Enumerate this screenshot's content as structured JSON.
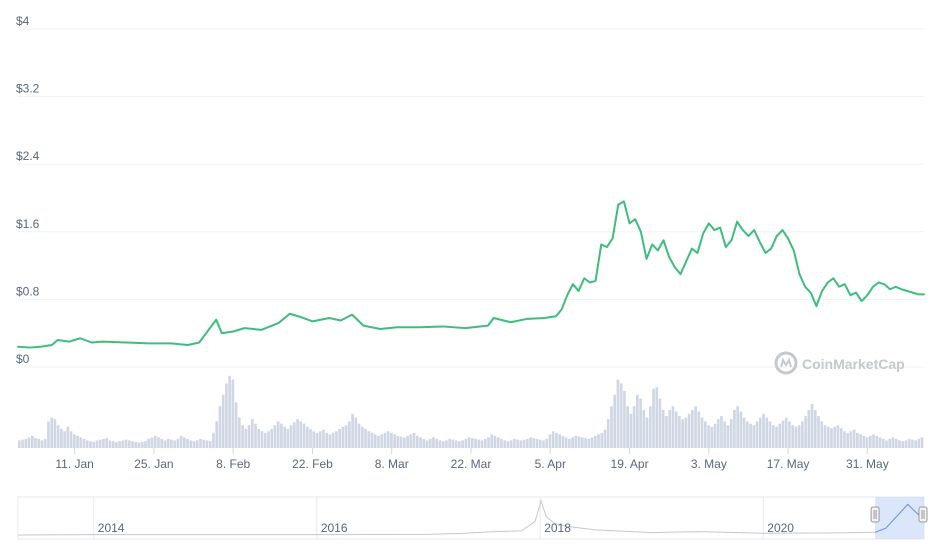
{
  "watermark": "CoinMarketCap",
  "colors": {
    "price_line": "#3ebd7c",
    "volume_bar": "#cfd6e4",
    "grid": "#eff2f5",
    "tick_text": "#58667e",
    "navigator_line": "#c4c8cf",
    "navigator_selection": "#c9d8f8",
    "navigator_border": "#e6e9ee",
    "watermark": "#c4c8cf"
  },
  "chart_data": [
    {
      "type": "line",
      "title": "",
      "xlabel": "",
      "ylabel": "",
      "y_axis": {
        "ticks": [
          "$0",
          "$0.8",
          "$1.6",
          "$2.4",
          "$3.2",
          "$4"
        ],
        "range": [
          0,
          4
        ],
        "grid": true
      },
      "x_axis": {
        "ticks": [
          "11. Jan",
          "25. Jan",
          "8. Feb",
          "22. Feb",
          "8. Mar",
          "22. Mar",
          "5. Apr",
          "19. Apr",
          "3. May",
          "17. May",
          "31. May"
        ],
        "range": [
          "2021-01-01",
          "2021-06-10"
        ]
      },
      "series": [
        {
          "values": [
            [
              "2021-01-01",
              0.24
            ],
            [
              "2021-01-03",
              0.23
            ],
            [
              "2021-01-05",
              0.24
            ],
            [
              "2021-01-07",
              0.26
            ],
            [
              "2021-01-08",
              0.32
            ],
            [
              "2021-01-10",
              0.3
            ],
            [
              "2021-01-12",
              0.34
            ],
            [
              "2021-01-14",
              0.29
            ],
            [
              "2021-01-16",
              0.3
            ],
            [
              "2021-01-20",
              0.29
            ],
            [
              "2021-01-24",
              0.28
            ],
            [
              "2021-01-28",
              0.28
            ],
            [
              "2021-01-31",
              0.26
            ],
            [
              "2021-02-02",
              0.29
            ],
            [
              "2021-02-03",
              0.38
            ],
            [
              "2021-02-04",
              0.47
            ],
            [
              "2021-02-05",
              0.56
            ],
            [
              "2021-02-06",
              0.4
            ],
            [
              "2021-02-08",
              0.42
            ],
            [
              "2021-02-10",
              0.46
            ],
            [
              "2021-02-13",
              0.44
            ],
            [
              "2021-02-16",
              0.52
            ],
            [
              "2021-02-18",
              0.63
            ],
            [
              "2021-02-20",
              0.59
            ],
            [
              "2021-02-22",
              0.54
            ],
            [
              "2021-02-25",
              0.58
            ],
            [
              "2021-02-27",
              0.55
            ],
            [
              "2021-03-01",
              0.62
            ],
            [
              "2021-03-03",
              0.49
            ],
            [
              "2021-03-06",
              0.45
            ],
            [
              "2021-03-09",
              0.47
            ],
            [
              "2021-03-13",
              0.47
            ],
            [
              "2021-03-17",
              0.48
            ],
            [
              "2021-03-21",
              0.46
            ],
            [
              "2021-03-25",
              0.49
            ],
            [
              "2021-03-26",
              0.58
            ],
            [
              "2021-03-29",
              0.53
            ],
            [
              "2021-04-01",
              0.57
            ],
            [
              "2021-04-04",
              0.58
            ],
            [
              "2021-04-06",
              0.6
            ],
            [
              "2021-04-07",
              0.68
            ],
            [
              "2021-04-08",
              0.85
            ],
            [
              "2021-04-09",
              0.98
            ],
            [
              "2021-04-10",
              0.9
            ],
            [
              "2021-04-11",
              1.05
            ],
            [
              "2021-04-12",
              1.0
            ],
            [
              "2021-04-13",
              1.02
            ],
            [
              "2021-04-14",
              1.45
            ],
            [
              "2021-04-15",
              1.42
            ],
            [
              "2021-04-16",
              1.52
            ],
            [
              "2021-04-17",
              1.92
            ],
            [
              "2021-04-18",
              1.96
            ],
            [
              "2021-04-19",
              1.7
            ],
            [
              "2021-04-20",
              1.75
            ],
            [
              "2021-04-21",
              1.6
            ],
            [
              "2021-04-22",
              1.28
            ],
            [
              "2021-04-23",
              1.45
            ],
            [
              "2021-04-24",
              1.38
            ],
            [
              "2021-04-25",
              1.5
            ],
            [
              "2021-04-26",
              1.3
            ],
            [
              "2021-04-27",
              1.18
            ],
            [
              "2021-04-28",
              1.1
            ],
            [
              "2021-04-29",
              1.25
            ],
            [
              "2021-04-30",
              1.4
            ],
            [
              "2021-05-01",
              1.35
            ],
            [
              "2021-05-02",
              1.58
            ],
            [
              "2021-05-03",
              1.7
            ],
            [
              "2021-05-04",
              1.62
            ],
            [
              "2021-05-05",
              1.65
            ],
            [
              "2021-05-06",
              1.42
            ],
            [
              "2021-05-07",
              1.5
            ],
            [
              "2021-05-08",
              1.72
            ],
            [
              "2021-05-09",
              1.62
            ],
            [
              "2021-05-10",
              1.55
            ],
            [
              "2021-05-11",
              1.62
            ],
            [
              "2021-05-12",
              1.48
            ],
            [
              "2021-05-13",
              1.35
            ],
            [
              "2021-05-14",
              1.4
            ],
            [
              "2021-05-15",
              1.55
            ],
            [
              "2021-05-16",
              1.62
            ],
            [
              "2021-05-17",
              1.52
            ],
            [
              "2021-05-18",
              1.38
            ],
            [
              "2021-05-19",
              1.1
            ],
            [
              "2021-05-20",
              0.95
            ],
            [
              "2021-05-21",
              0.88
            ],
            [
              "2021-05-22",
              0.72
            ],
            [
              "2021-05-23",
              0.9
            ],
            [
              "2021-05-24",
              1.0
            ],
            [
              "2021-05-25",
              1.05
            ],
            [
              "2021-05-26",
              0.95
            ],
            [
              "2021-05-27",
              0.98
            ],
            [
              "2021-05-28",
              0.85
            ],
            [
              "2021-05-29",
              0.88
            ],
            [
              "2021-05-30",
              0.78
            ],
            [
              "2021-05-31",
              0.85
            ],
            [
              "2021-06-01",
              0.95
            ],
            [
              "2021-06-02",
              1.0
            ],
            [
              "2021-06-03",
              0.98
            ],
            [
              "2021-06-04",
              0.92
            ],
            [
              "2021-06-05",
              0.95
            ],
            [
              "2021-06-06",
              0.92
            ],
            [
              "2021-06-07",
              0.9
            ],
            [
              "2021-06-08",
              0.88
            ],
            [
              "2021-06-09",
              0.86
            ],
            [
              "2021-06-10",
              0.86
            ]
          ]
        }
      ]
    },
    {
      "type": "bar",
      "title": "",
      "x_range": [
        "2021-01-01",
        "2021-06-10"
      ],
      "volume_relative_to_max": [
        0.1,
        0.11,
        0.12,
        0.14,
        0.16,
        0.13,
        0.12,
        0.1,
        0.12,
        0.35,
        0.4,
        0.38,
        0.3,
        0.25,
        0.22,
        0.28,
        0.22,
        0.18,
        0.16,
        0.14,
        0.12,
        0.1,
        0.09,
        0.08,
        0.1,
        0.11,
        0.12,
        0.13,
        0.1,
        0.09,
        0.08,
        0.09,
        0.1,
        0.11,
        0.1,
        0.09,
        0.08,
        0.07,
        0.08,
        0.09,
        0.12,
        0.14,
        0.16,
        0.14,
        0.12,
        0.1,
        0.12,
        0.11,
        0.1,
        0.12,
        0.16,
        0.14,
        0.12,
        0.1,
        0.09,
        0.1,
        0.12,
        0.11,
        0.1,
        0.09,
        0.2,
        0.35,
        0.55,
        0.7,
        0.85,
        0.95,
        0.9,
        0.6,
        0.4,
        0.3,
        0.25,
        0.3,
        0.38,
        0.32,
        0.25,
        0.22,
        0.2,
        0.22,
        0.25,
        0.3,
        0.35,
        0.32,
        0.28,
        0.25,
        0.3,
        0.34,
        0.38,
        0.35,
        0.32,
        0.28,
        0.25,
        0.22,
        0.2,
        0.22,
        0.24,
        0.2,
        0.18,
        0.2,
        0.22,
        0.25,
        0.28,
        0.3,
        0.35,
        0.45,
        0.4,
        0.32,
        0.28,
        0.25,
        0.22,
        0.2,
        0.18,
        0.16,
        0.18,
        0.2,
        0.22,
        0.2,
        0.18,
        0.16,
        0.15,
        0.14,
        0.16,
        0.18,
        0.2,
        0.16,
        0.14,
        0.12,
        0.1,
        0.12,
        0.14,
        0.12,
        0.1,
        0.09,
        0.1,
        0.12,
        0.11,
        0.1,
        0.09,
        0.1,
        0.12,
        0.14,
        0.13,
        0.12,
        0.11,
        0.1,
        0.12,
        0.14,
        0.18,
        0.16,
        0.14,
        0.12,
        0.1,
        0.09,
        0.1,
        0.12,
        0.11,
        0.1,
        0.11,
        0.12,
        0.14,
        0.13,
        0.12,
        0.11,
        0.1,
        0.12,
        0.18,
        0.22,
        0.2,
        0.18,
        0.16,
        0.14,
        0.12,
        0.14,
        0.16,
        0.15,
        0.14,
        0.13,
        0.12,
        0.14,
        0.16,
        0.18,
        0.2,
        0.24,
        0.38,
        0.55,
        0.7,
        0.9,
        0.85,
        0.75,
        0.55,
        0.45,
        0.55,
        0.7,
        0.65,
        0.5,
        0.4,
        0.55,
        0.78,
        0.8,
        0.65,
        0.5,
        0.42,
        0.5,
        0.55,
        0.48,
        0.42,
        0.38,
        0.4,
        0.45,
        0.5,
        0.55,
        0.48,
        0.4,
        0.35,
        0.3,
        0.28,
        0.32,
        0.38,
        0.42,
        0.35,
        0.3,
        0.38,
        0.5,
        0.55,
        0.48,
        0.4,
        0.35,
        0.32,
        0.3,
        0.35,
        0.4,
        0.45,
        0.4,
        0.35,
        0.3,
        0.28,
        0.32,
        0.36,
        0.4,
        0.35,
        0.3,
        0.28,
        0.3,
        0.35,
        0.42,
        0.5,
        0.58,
        0.5,
        0.42,
        0.35,
        0.3,
        0.28,
        0.26,
        0.28,
        0.3,
        0.26,
        0.22,
        0.2,
        0.22,
        0.24,
        0.2,
        0.18,
        0.16,
        0.14,
        0.16,
        0.18,
        0.16,
        0.14,
        0.12,
        0.1,
        0.12,
        0.14,
        0.12,
        0.1,
        0.09,
        0.1,
        0.12,
        0.11,
        0.1,
        0.12,
        0.14
      ]
    },
    {
      "type": "line",
      "title": "",
      "x_axis": {
        "ticks": [
          "2014",
          "2016",
          "2018",
          "2020"
        ],
        "range": [
          "2013-04-28",
          "2021-06-10"
        ]
      },
      "selected_range": [
        "2021-01-01",
        "2021-06-10"
      ],
      "series": [
        {
          "values": [
            [
              "2013-04-28",
              0.0
            ],
            [
              "2014-01-01",
              0.01
            ],
            [
              "2015-01-01",
              0.01
            ],
            [
              "2016-01-01",
              0.01
            ],
            [
              "2017-01-01",
              0.02
            ],
            [
              "2017-05-01",
              0.05
            ],
            [
              "2017-08-01",
              0.1
            ],
            [
              "2017-11-01",
              0.12
            ],
            [
              "2017-12-15",
              0.4
            ],
            [
              "2018-01-04",
              1.0
            ],
            [
              "2018-01-20",
              0.55
            ],
            [
              "2018-02-15",
              0.35
            ],
            [
              "2018-04-01",
              0.25
            ],
            [
              "2018-07-01",
              0.15
            ],
            [
              "2019-01-01",
              0.07
            ],
            [
              "2019-06-01",
              0.1
            ],
            [
              "2020-01-01",
              0.05
            ],
            [
              "2020-08-01",
              0.06
            ],
            [
              "2021-01-01",
              0.08
            ],
            [
              "2021-02-05",
              0.2
            ],
            [
              "2021-04-18",
              0.9
            ],
            [
              "2021-05-05",
              0.75
            ],
            [
              "2021-06-10",
              0.45
            ]
          ]
        }
      ]
    }
  ]
}
